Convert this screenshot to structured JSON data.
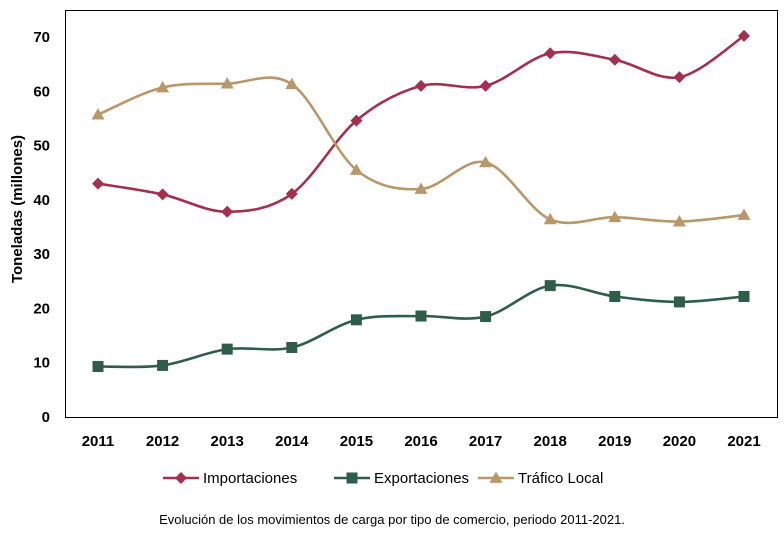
{
  "chart_data": {
    "type": "line",
    "title": "",
    "xlabel": "",
    "ylabel": "Toneladas (millones)",
    "ylim": [
      0,
      70
    ],
    "yticks": [
      0,
      10,
      20,
      30,
      40,
      50,
      60,
      70
    ],
    "x": [
      "2011",
      "2012",
      "2013",
      "2014",
      "2015",
      "2016",
      "2017",
      "2018",
      "2019",
      "2020",
      "2021"
    ],
    "grid": false,
    "smooth": true,
    "legend_position": "bottom",
    "series": [
      {
        "name": "Importaciones",
        "color": "#a2304e",
        "marker": "diamond",
        "values": [
          43.0,
          41.0,
          37.8,
          41.1,
          54.6,
          61.0,
          61.0,
          67.0,
          65.8,
          62.6,
          70.2
        ]
      },
      {
        "name": "Exportaciones",
        "color": "#2f5d49",
        "marker": "square",
        "values": [
          9.3,
          9.5,
          12.5,
          12.8,
          17.9,
          18.6,
          18.5,
          24.2,
          22.2,
          21.2,
          22.2
        ]
      },
      {
        "name": "Tráfico Local",
        "color": "#b8976a",
        "marker": "triangle",
        "values": [
          55.7,
          60.7,
          61.4,
          61.3,
          45.5,
          42.0,
          46.9,
          36.4,
          36.8,
          36.0,
          37.2
        ]
      }
    ]
  },
  "caption": "Evolución de los movimientos de carga por tipo de comercio, periodo 2011-2021."
}
